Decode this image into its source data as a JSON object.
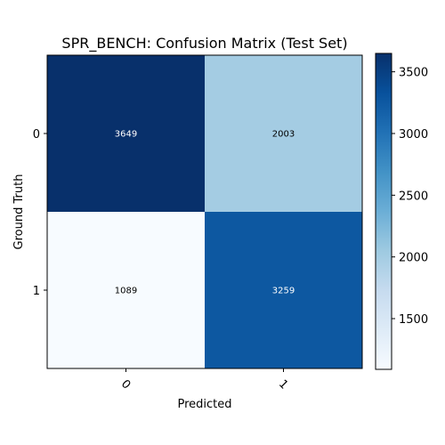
{
  "chart_data": {
    "type": "heatmap",
    "title": "SPR_BENCH: Confusion Matrix (Test Set)",
    "xlabel": "Predicted",
    "ylabel": "Ground Truth",
    "x_categories": [
      "0",
      "1"
    ],
    "y_categories": [
      "0",
      "1"
    ],
    "matrix": [
      [
        3649,
        2003
      ],
      [
        1089,
        3259
      ]
    ],
    "colormap": "Blues",
    "colorbar": {
      "min": 1089,
      "max": 3649,
      "ticks": [
        1500,
        2000,
        2500,
        3000,
        3500
      ],
      "tick_labels": [
        "1500",
        "2000",
        "2500",
        "3000",
        "3500"
      ]
    },
    "x_tick_rotation_deg": 45
  }
}
